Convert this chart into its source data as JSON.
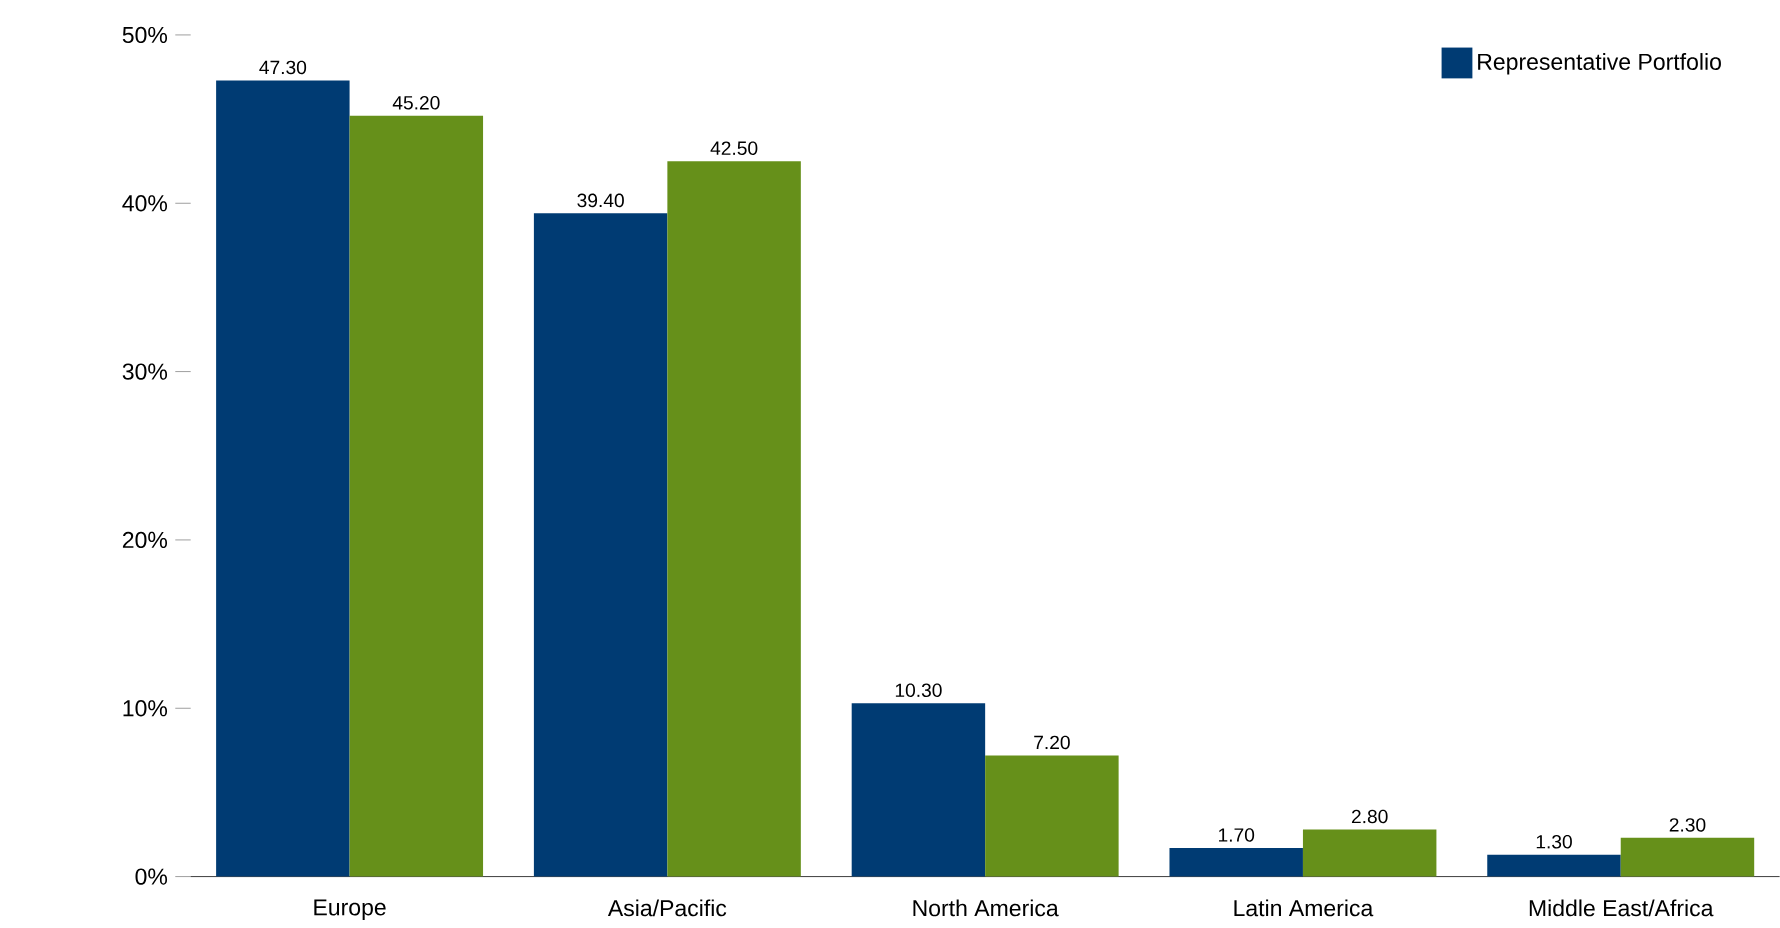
{
  "chart_data": {
    "type": "bar",
    "categories": [
      "Europe",
      "Asia/Pacific",
      "North America",
      "Latin America",
      "Middle East/Africa"
    ],
    "series": [
      {
        "name": "Representative Portfolio",
        "color": "#003b73",
        "values": [
          47.3,
          39.4,
          10.3,
          1.7,
          1.3
        ],
        "value_labels": [
          "47.30",
          "39.40",
          "10.30",
          "1.70",
          "1.30"
        ]
      },
      {
        "color": "#66901a",
        "values": [
          45.2,
          42.5,
          7.2,
          2.8,
          2.3
        ],
        "value_labels": [
          "45.20",
          "42.50",
          "7.20",
          "2.80",
          "2.30"
        ]
      }
    ],
    "ylim": [
      0,
      50
    ],
    "yticks": [
      {
        "value": 0,
        "label": "0%"
      },
      {
        "value": 10,
        "label": "10%"
      },
      {
        "value": 20,
        "label": "20%"
      },
      {
        "value": 30,
        "label": "30%"
      },
      {
        "value": 40,
        "label": "40%"
      },
      {
        "value": 50,
        "label": "50%"
      }
    ],
    "legend": "top right",
    "grid": false
  }
}
